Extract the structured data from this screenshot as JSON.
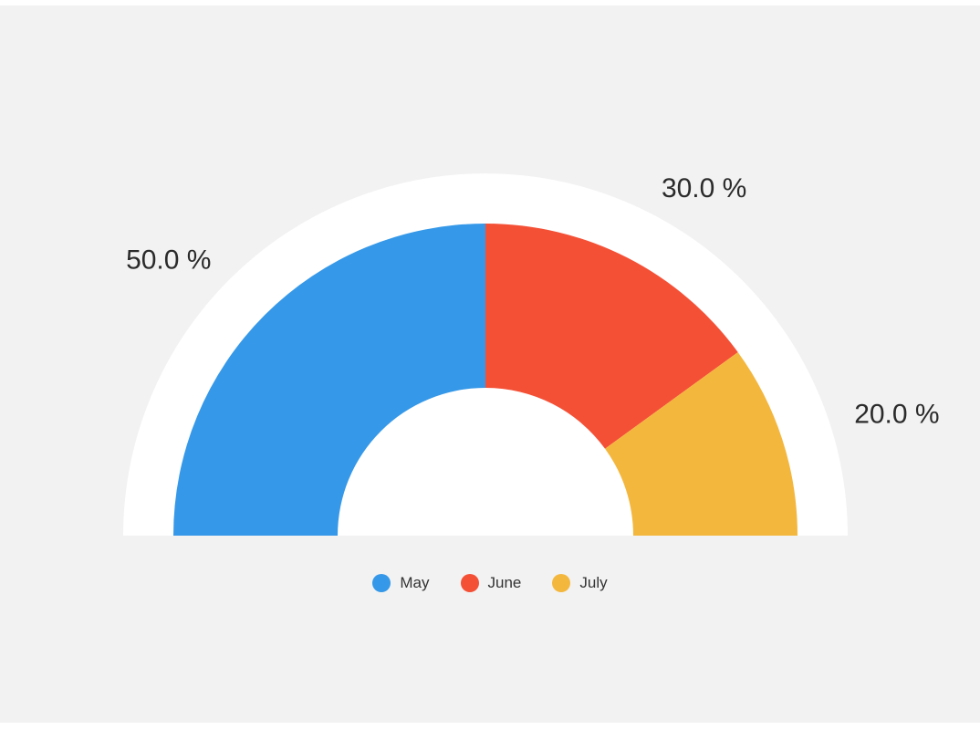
{
  "chart_data": {
    "type": "pie",
    "variant": "semi-donut",
    "categories": [
      "May",
      "June",
      "July"
    ],
    "values": [
      50.0,
      30.0,
      20.0
    ],
    "labels": [
      "50.0 %",
      "30.0 %",
      "20.0 %"
    ],
    "colors": [
      "#3598e8",
      "#f45036",
      "#f4b73e"
    ],
    "start_angle_deg": 180,
    "end_angle_deg": 0,
    "legend_position": "bottom-center",
    "background": "#f2f2f2",
    "track_color": "#ffffff"
  },
  "legend": {
    "items": [
      {
        "label": "May",
        "color": "#3598e8"
      },
      {
        "label": "June",
        "color": "#f45036"
      },
      {
        "label": "July",
        "color": "#f4b73e"
      }
    ]
  }
}
